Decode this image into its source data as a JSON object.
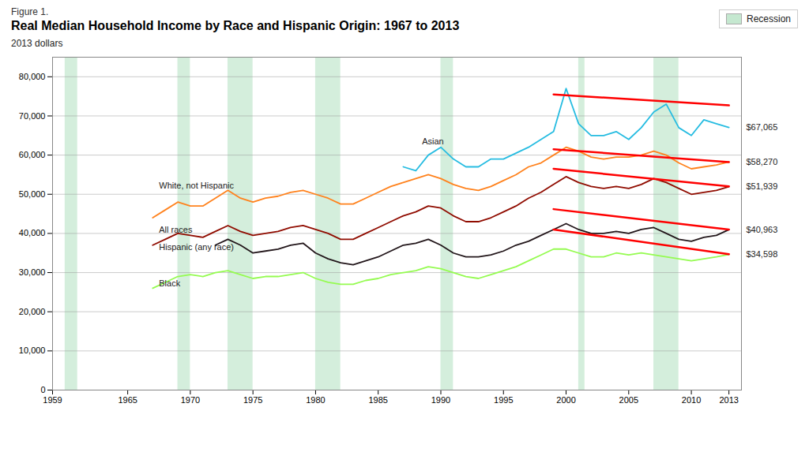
{
  "chart_data": {
    "type": "line",
    "subtitle": "Figure 1.",
    "title": "Real Median Household Income by Race and Hispanic Origin: 1967 to 2013",
    "ylabel": "2013 dollars",
    "x": [
      1967,
      1968,
      1969,
      1970,
      1971,
      1972,
      1973,
      1974,
      1975,
      1976,
      1977,
      1978,
      1979,
      1980,
      1981,
      1982,
      1983,
      1984,
      1985,
      1986,
      1987,
      1988,
      1989,
      1990,
      1991,
      1992,
      1993,
      1994,
      1995,
      1996,
      1997,
      1998,
      1999,
      2000,
      2001,
      2002,
      2003,
      2004,
      2005,
      2006,
      2007,
      2008,
      2009,
      2010,
      2011,
      2012,
      2013
    ],
    "series": [
      {
        "name": "Hispanic (any race)",
        "values": [
          null,
          null,
          null,
          null,
          null,
          37000,
          38500,
          37000,
          35000,
          35500,
          36000,
          37000,
          37500,
          35000,
          33500,
          32500,
          32000,
          33000,
          34000,
          35500,
          37000,
          37500,
          38500,
          37000,
          35000,
          34000,
          34000,
          34500,
          35500,
          37000,
          38000,
          39500,
          41000,
          42500,
          41000,
          40000,
          40000,
          40500,
          40000,
          41000,
          41500,
          40000,
          38500,
          38000,
          39000,
          39500,
          40963
        ]
      },
      {
        "name": "Asian",
        "values": [
          null,
          null,
          null,
          null,
          null,
          null,
          null,
          null,
          null,
          null,
          null,
          null,
          null,
          null,
          null,
          null,
          null,
          null,
          null,
          null,
          57000,
          56000,
          60000,
          62000,
          59000,
          57000,
          57000,
          59000,
          59000,
          60500,
          62000,
          64000,
          66000,
          77000,
          68000,
          65000,
          65000,
          66000,
          64000,
          67000,
          71000,
          73000,
          67000,
          65000,
          69000,
          68000,
          67065
        ]
      },
      {
        "name": "Black",
        "values": [
          26000,
          27500,
          29000,
          29500,
          29000,
          30000,
          30500,
          29500,
          28500,
          29000,
          29000,
          29500,
          30000,
          28500,
          27500,
          27000,
          27000,
          28000,
          28500,
          29500,
          30000,
          30500,
          31500,
          31000,
          30000,
          29000,
          28500,
          29500,
          30500,
          31500,
          33000,
          34500,
          36000,
          36000,
          35000,
          34000,
          34000,
          35000,
          34500,
          35000,
          34500,
          34000,
          33500,
          33000,
          33500,
          34000,
          34598
        ]
      },
      {
        "name": "White, not Hispanic",
        "values": [
          44000,
          46000,
          48000,
          47000,
          47000,
          49000,
          51000,
          49000,
          48000,
          49000,
          49500,
          50500,
          51000,
          50000,
          49000,
          47500,
          47500,
          49000,
          50500,
          52000,
          53000,
          54000,
          55000,
          54000,
          52500,
          51500,
          51000,
          52000,
          53500,
          55000,
          57000,
          58000,
          60000,
          62000,
          61000,
          59500,
          59000,
          59500,
          59500,
          60000,
          61000,
          60000,
          58000,
          56500,
          57000,
          57500,
          58270
        ]
      },
      {
        "name": "All races",
        "values": [
          37000,
          38500,
          40000,
          39500,
          39000,
          40500,
          42000,
          40500,
          39500,
          40000,
          40500,
          41500,
          42000,
          41000,
          40000,
          38500,
          38500,
          40000,
          41500,
          43000,
          44500,
          45500,
          47000,
          46500,
          44500,
          43000,
          43000,
          44000,
          45500,
          47000,
          49000,
          50500,
          52500,
          54500,
          53000,
          52000,
          51500,
          52000,
          51500,
          52500,
          54000,
          53000,
          51500,
          50000,
          50500,
          51000,
          51939
        ]
      }
    ],
    "xlim": [
      1959,
      2014
    ],
    "xticks": [
      1959,
      1965,
      1970,
      1975,
      1980,
      1985,
      1990,
      1995,
      2000,
      2005,
      2010,
      2013
    ],
    "ylim": [
      0,
      85000
    ],
    "yticks": [
      0,
      {
        "value": 10000,
        "label": "10,000"
      },
      {
        "value": 20000,
        "label": "20,000"
      },
      {
        "value": 30000,
        "label": "30,000"
      },
      {
        "value": 40000,
        "label": "40,000"
      },
      {
        "value": 50000,
        "label": "50,000"
      },
      {
        "value": 60000,
        "label": "60,000"
      },
      {
        "value": 70000,
        "label": "70,000"
      },
      {
        "value": 80000,
        "label": "80,000"
      }
    ],
    "grid": true,
    "legend": "top-right",
    "bands": [
      {
        "name": "Recession",
        "color": "#c5e8d0",
        "ranges": [
          [
            1960,
            1961
          ],
          [
            1969,
            1970
          ],
          [
            1973,
            1975
          ],
          [
            1980,
            1982
          ],
          [
            1990,
            1991
          ],
          [
            2001,
            2001.5
          ],
          [
            2007,
            2009
          ]
        ]
      }
    ],
    "trend_lines": [
      {
        "color": "red",
        "x": [
          1999,
          2013
        ],
        "values": [
          75500,
          72700
        ]
      },
      {
        "color": "red",
        "x": [
          1999,
          2013
        ],
        "values": [
          61500,
          58200
        ]
      },
      {
        "color": "red",
        "x": [
          1999,
          2013
        ],
        "values": [
          56500,
          52000
        ]
      },
      {
        "color": "red",
        "x": [
          1999,
          2013
        ],
        "values": [
          46200,
          41000
        ]
      },
      {
        "color": "red",
        "x": [
          1999,
          2013
        ],
        "values": [
          41000,
          34700
        ]
      }
    ],
    "end_labels": [
      {
        "value": 67065,
        "label": "$67,065"
      },
      {
        "value": 58270,
        "label": "$58,270"
      },
      {
        "value": 51939,
        "label": "$51,939"
      },
      {
        "value": 40963,
        "label": "$40,963"
      },
      {
        "value": 34598,
        "label": "$34,598"
      }
    ],
    "annotations": [
      {
        "text": "Asian",
        "x": 1988.5,
        "y": 63500
      },
      {
        "text": "White, not Hispanic",
        "x": 1967.5,
        "y": 52200
      },
      {
        "text": "All races",
        "x": 1967.5,
        "y": 40800
      },
      {
        "text": "Hispanic (any race)",
        "x": 1967.5,
        "y": 36500
      },
      {
        "text": "Black",
        "x": 1967.5,
        "y": 27200
      }
    ]
  }
}
